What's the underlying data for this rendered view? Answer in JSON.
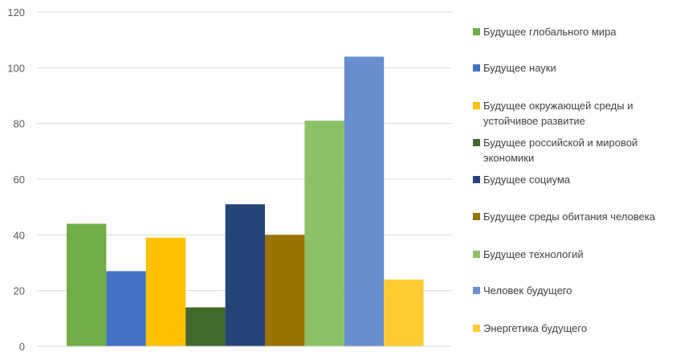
{
  "chart_data": {
    "type": "bar",
    "title": "",
    "xlabel": "",
    "ylabel": "",
    "ylim": [
      0,
      120
    ],
    "yticks": [
      0,
      20,
      40,
      60,
      80,
      100,
      120
    ],
    "grid": true,
    "legend_position": "right",
    "series": [
      {
        "name": "Будущее глобального мира",
        "value": 44,
        "color": "#70AD47"
      },
      {
        "name": "Будущее науки",
        "value": 27,
        "color": "#4472C4"
      },
      {
        "name": "Будущее окружающей среды и устойчивое развитие",
        "value": 39,
        "color": "#FFC000"
      },
      {
        "name": "Будущее российской и мировой экономики",
        "value": 14,
        "color": "#43682B"
      },
      {
        "name": "Будущее социума",
        "value": 51,
        "color": "#264478"
      },
      {
        "name": "Будущее среды обитания человека",
        "value": 40,
        "color": "#997300"
      },
      {
        "name": "Будущее технологий",
        "value": 81,
        "color": "#8CC168"
      },
      {
        "name": "Человек будущего",
        "value": 104,
        "color": "#698ED0"
      },
      {
        "name": "Энергетика будущего",
        "value": 24,
        "color": "#FFCD33"
      }
    ]
  }
}
